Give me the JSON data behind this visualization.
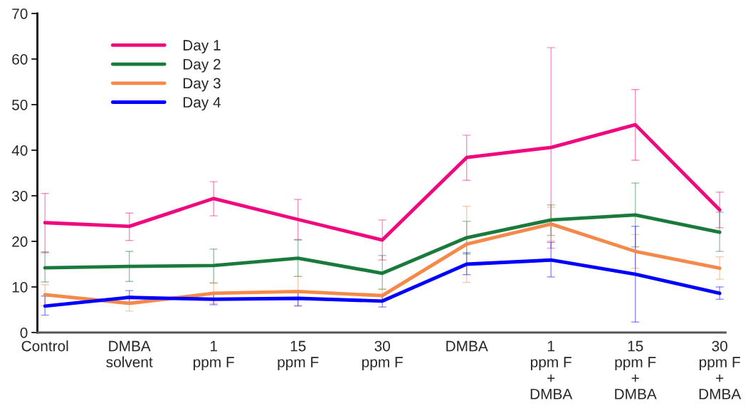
{
  "chart_data": {
    "type": "line",
    "categories": [
      "Control",
      "DMBA\nsolvent",
      "1\nppm F",
      "15\nppm F",
      "30\nppm F",
      "DMBA",
      "1\nppm F\n+\nDMBA",
      "15\nppm F\n+\nDMBA",
      "30\nppm F\n+\nDMBA"
    ],
    "series": [
      {
        "name": "Day 1",
        "color": "#f0087f",
        "values": [
          24.1,
          23.3,
          29.4,
          24.8,
          20.3,
          38.4,
          40.6,
          45.6,
          26.9
        ],
        "errors": [
          [
            17.5,
            30.5
          ],
          [
            20.2,
            26.2
          ],
          [
            25.6,
            33.1
          ],
          [
            20.4,
            29.2
          ],
          [
            15.9,
            24.7
          ],
          [
            33.4,
            43.3
          ],
          [
            18.5,
            62.5
          ],
          [
            37.8,
            53.3
          ],
          [
            23.0,
            30.8
          ]
        ]
      },
      {
        "name": "Day 2",
        "color": "#1a7a3c",
        "values": [
          14.2,
          14.5,
          14.7,
          16.3,
          13.0,
          20.8,
          24.7,
          25.8,
          22.0
        ],
        "errors": [
          [
            11.1,
            17.7
          ],
          [
            11.2,
            17.8
          ],
          [
            10.9,
            18.3
          ],
          [
            12.3,
            20.3
          ],
          [
            9.5,
            16.9
          ],
          [
            17.2,
            24.4
          ],
          [
            21.3,
            28.0
          ],
          [
            18.8,
            32.8
          ],
          [
            17.8,
            26.4
          ]
        ]
      },
      {
        "name": "Day 3",
        "color": "#f5894a",
        "values": [
          8.3,
          6.4,
          8.6,
          9.0,
          8.1,
          19.4,
          23.8,
          17.8,
          14.1
        ],
        "errors": [
          [
            5.9,
            10.5
          ],
          [
            4.7,
            8.1
          ],
          [
            6.4,
            10.8
          ],
          [
            5.7,
            12.3
          ],
          [
            6.7,
            9.5
          ],
          [
            11.0,
            27.7
          ],
          [
            20.1,
            27.5
          ],
          [
            14.1,
            21.5
          ],
          [
            11.7,
            16.6
          ]
        ]
      },
      {
        "name": "Day 4",
        "color": "#0000ff",
        "values": [
          5.8,
          7.7,
          7.3,
          7.5,
          6.9,
          15.0,
          15.9,
          12.8,
          8.6
        ],
        "errors": [
          [
            3.8,
            8.0
          ],
          [
            6.3,
            9.2
          ],
          [
            6.1,
            8.7
          ],
          [
            5.9,
            9.0
          ],
          [
            5.6,
            8.2
          ],
          [
            12.7,
            17.5
          ],
          [
            12.2,
            19.8
          ],
          [
            2.3,
            23.3
          ],
          [
            7.3,
            10.0
          ]
        ]
      }
    ],
    "ylim": [
      0,
      70
    ],
    "yticks": [
      0,
      10,
      20,
      30,
      40,
      50,
      60,
      70
    ],
    "grid": false,
    "legend": "top left",
    "marker": "none",
    "line_style": "solid"
  }
}
